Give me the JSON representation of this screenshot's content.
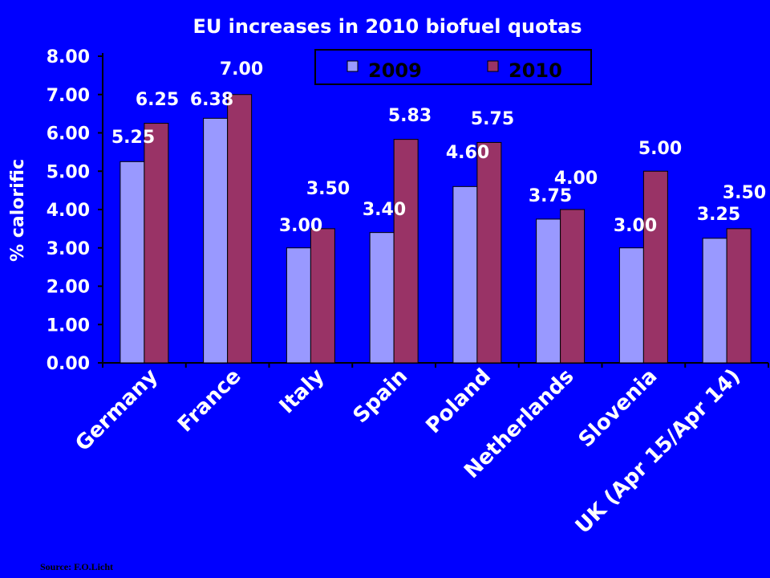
{
  "chart_data": {
    "type": "bar",
    "title": "EU increases in 2010 biofuel quotas",
    "ylabel": "% calorific",
    "xlabel": "",
    "ylim": [
      0,
      8
    ],
    "yticks": [
      "0.00",
      "1.00",
      "2.00",
      "3.00",
      "4.00",
      "5.00",
      "6.00",
      "7.00",
      "8.00"
    ],
    "grid": false,
    "legend_position": "top-right",
    "categories": [
      "Germany",
      "France",
      "Italy",
      "Spain",
      "Poland",
      "Netherlands",
      "Slovenia",
      "UK (Apr 15/Apr 14)"
    ],
    "series": [
      {
        "name": "2009",
        "color": "#9999ff",
        "values": [
          5.25,
          6.38,
          3.0,
          3.4,
          4.6,
          3.75,
          3.0,
          3.25
        ],
        "labels": [
          "5.25",
          "6.38",
          "3.00",
          "3.40",
          "4.60",
          "3.75",
          "3.00",
          "3.25"
        ]
      },
      {
        "name": "2010",
        "color": "#993366",
        "values": [
          6.25,
          7.0,
          3.5,
          5.83,
          5.75,
          4.0,
          5.0,
          3.5
        ],
        "labels": [
          "6.25",
          "7.00",
          "3.50",
          "5.83",
          "5.75",
          "4.00",
          "5.00",
          "3.50"
        ]
      }
    ]
  },
  "source": "Source: F.O.Licht"
}
